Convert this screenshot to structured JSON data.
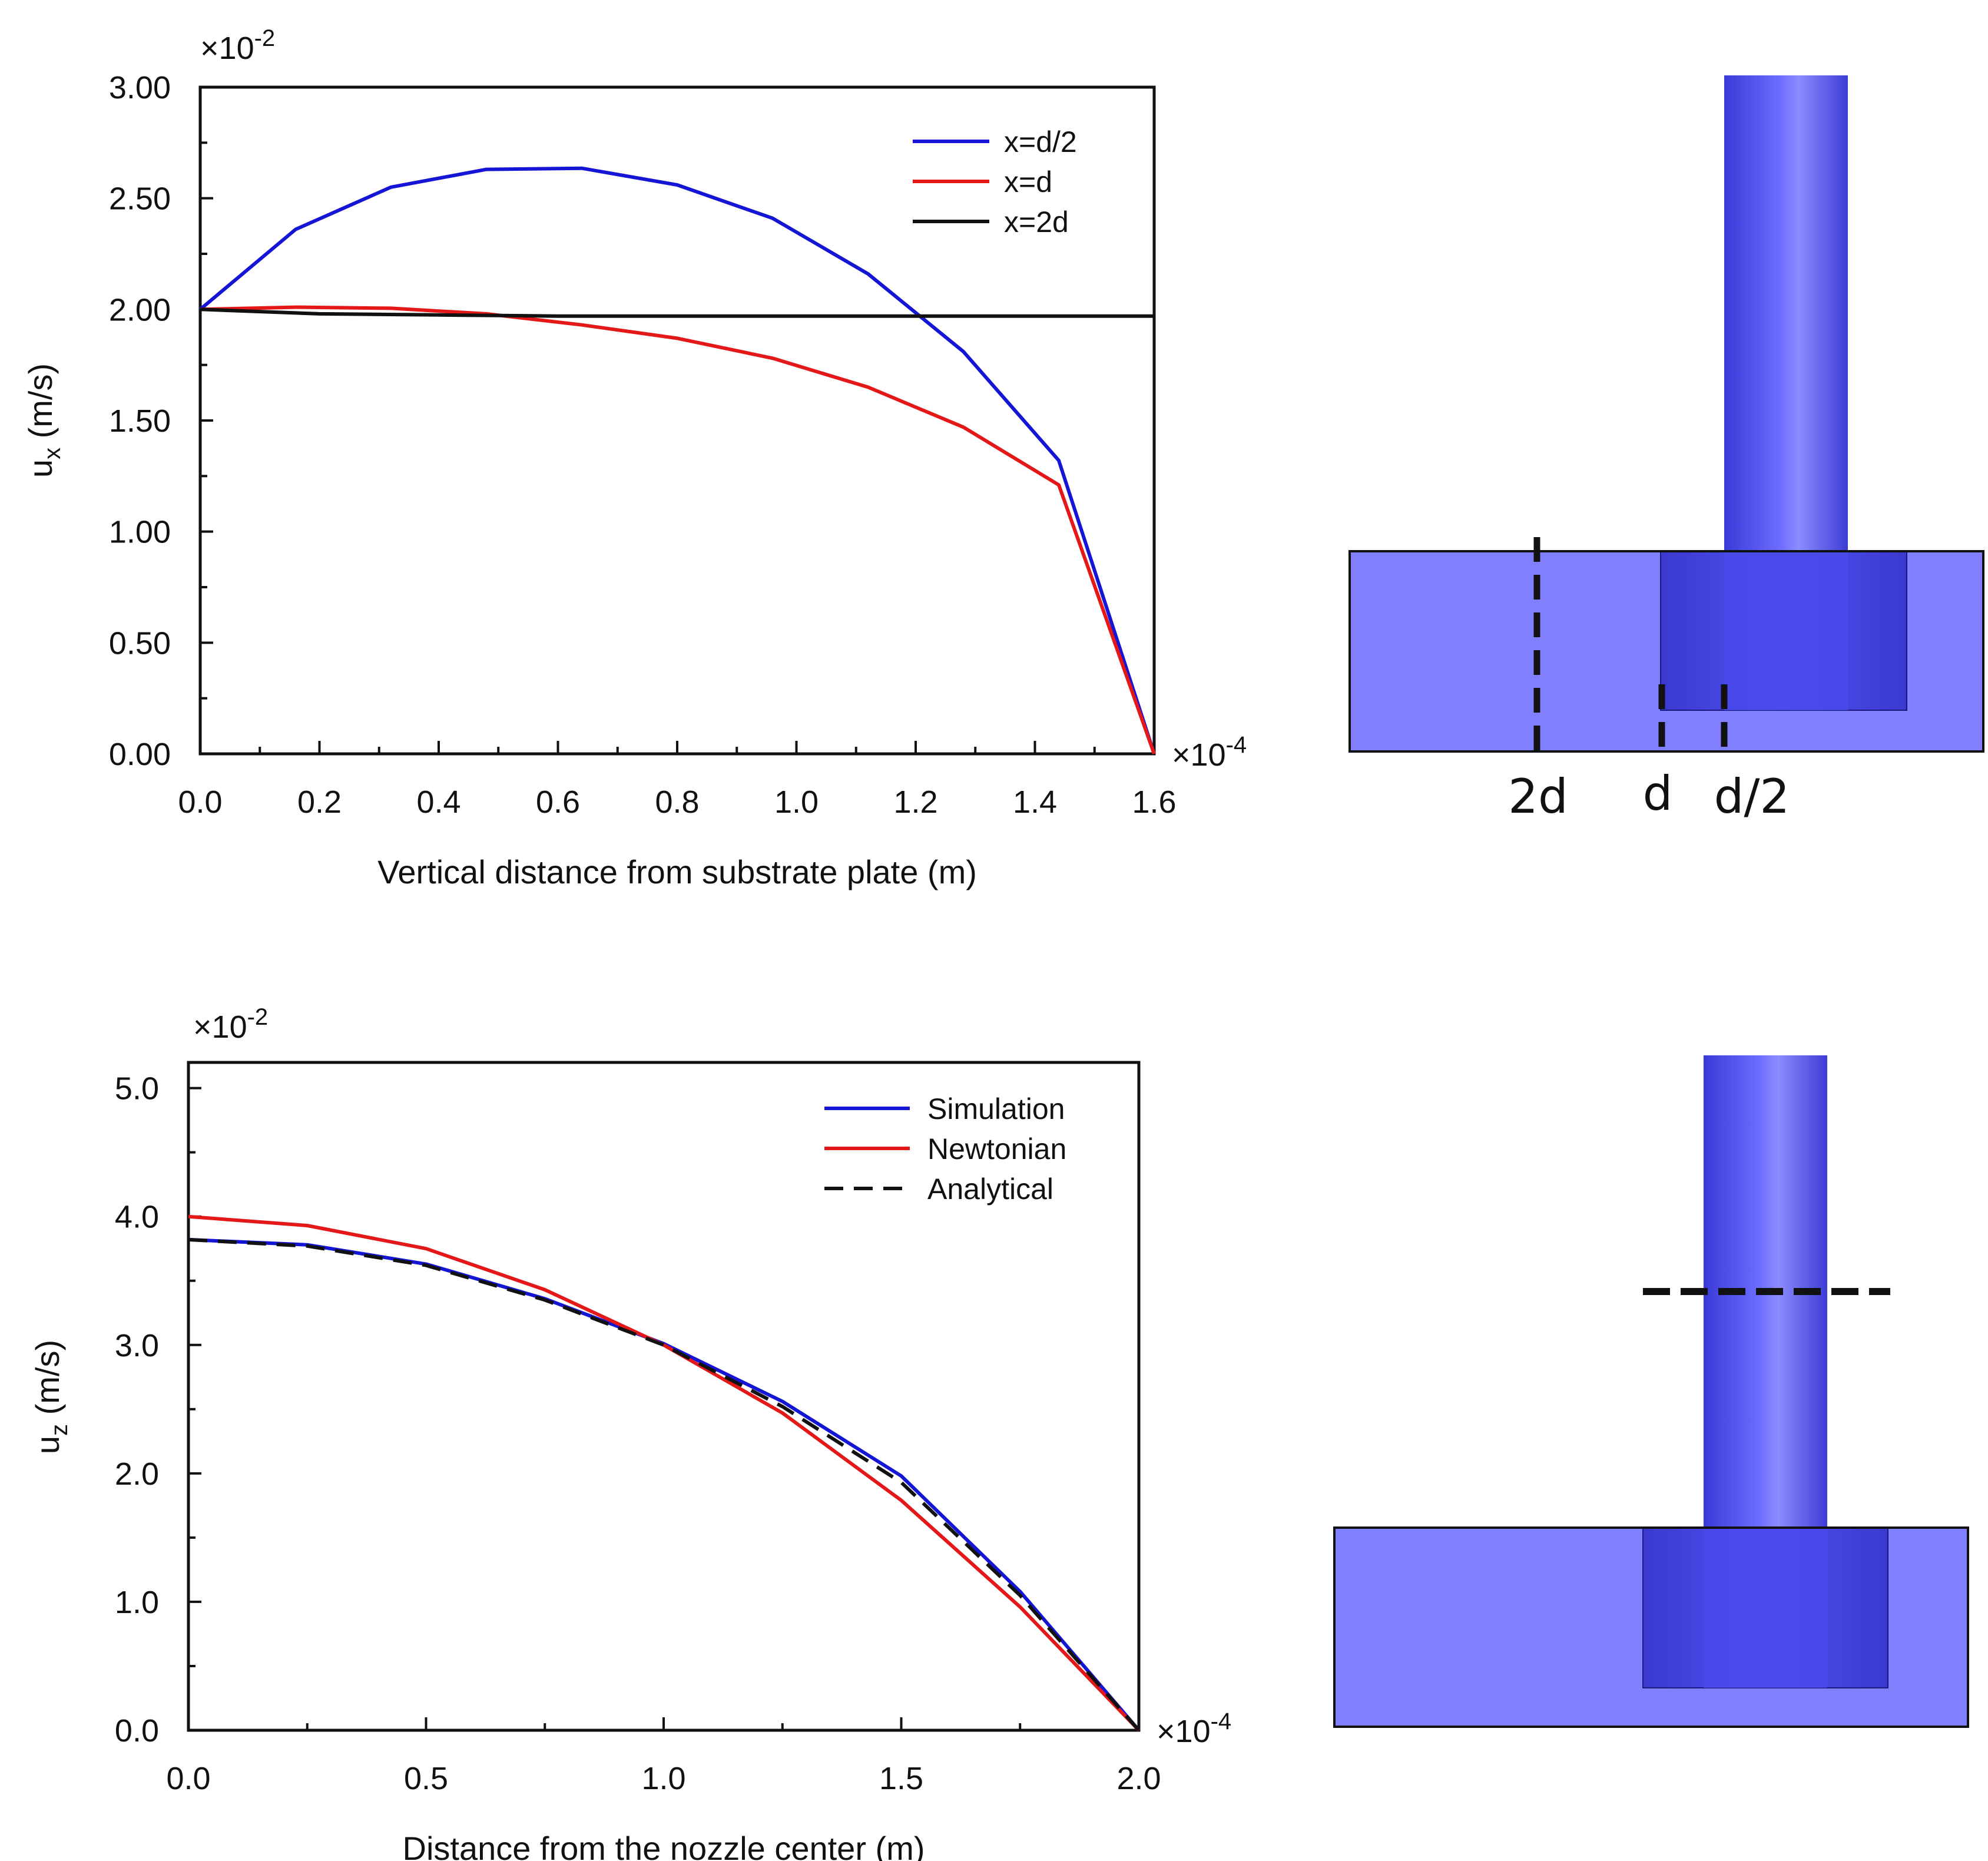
{
  "chart_data": [
    {
      "type": "line",
      "xlabel": "Vertical distance from substrate plate (m)",
      "ylabel_main": "u",
      "ylabel_sub": "x",
      "ylabel_unit": " (m/s)",
      "y_multiplier": "×10",
      "y_multiplier_exp": "-2",
      "x_multiplier": "×10",
      "x_multiplier_exp": "-4",
      "xlim": [
        0,
        1.6
      ],
      "ylim": [
        0,
        3.0
      ],
      "x_ticks": [
        "0.0",
        "0.2",
        "0.4",
        "0.6",
        "0.8",
        "1.0",
        "1.2",
        "1.4",
        "1.6"
      ],
      "y_ticks": [
        "0.00",
        "0.50",
        "1.00",
        "1.50",
        "2.00",
        "2.50",
        "3.00"
      ],
      "legend_position": "top-right",
      "series": [
        {
          "name": "x=d/2",
          "color": "#1515d6",
          "dash": "",
          "x": [
            0,
            0.16,
            0.32,
            0.48,
            0.64,
            0.8,
            0.96,
            1.12,
            1.28,
            1.44,
            1.6
          ],
          "y": [
            2.0,
            2.36,
            2.55,
            2.63,
            2.635,
            2.56,
            2.41,
            2.16,
            1.81,
            1.32,
            0.0
          ]
        },
        {
          "name": "x=d",
          "color": "#e41818",
          "dash": "",
          "x": [
            0,
            0.16,
            0.32,
            0.48,
            0.64,
            0.8,
            0.96,
            1.12,
            1.28,
            1.44,
            1.6
          ],
          "y": [
            2.0,
            2.01,
            2.005,
            1.98,
            1.93,
            1.87,
            1.78,
            1.65,
            1.47,
            1.21,
            0.0
          ]
        },
        {
          "name": "x=2d",
          "color": "#111111",
          "dash": "",
          "x": [
            0,
            0.2,
            0.4,
            0.6,
            0.8,
            1.0,
            1.2,
            1.4,
            1.6
          ],
          "y": [
            2.0,
            1.98,
            1.975,
            1.97,
            1.97,
            1.97,
            1.97,
            1.97,
            1.97
          ]
        }
      ]
    },
    {
      "type": "line",
      "xlabel": "Distance from the nozzle center (m)",
      "ylabel_main": "u",
      "ylabel_sub": "z",
      "ylabel_unit": " (m/s)",
      "y_multiplier": "×10",
      "y_multiplier_exp": "-2",
      "x_multiplier": "×10",
      "x_multiplier_exp": "-4",
      "xlim": [
        0,
        2.0
      ],
      "ylim": [
        0,
        5.2
      ],
      "x_ticks": [
        "0.0",
        "0.5",
        "1.0",
        "1.5",
        "2.0"
      ],
      "y_ticks": [
        "0.0",
        "1.0",
        "2.0",
        "3.0",
        "4.0",
        "5.0"
      ],
      "legend_position": "top-right",
      "series": [
        {
          "name": "Simulation",
          "color": "#1515d6",
          "dash": "",
          "x": [
            0,
            0.25,
            0.5,
            0.75,
            1.0,
            1.25,
            1.5,
            1.75,
            2.0
          ],
          "y": [
            3.82,
            3.78,
            3.63,
            3.36,
            3.01,
            2.56,
            1.98,
            1.08,
            0.0
          ]
        },
        {
          "name": "Newtonian",
          "color": "#e41818",
          "dash": "",
          "x": [
            0,
            0.25,
            0.5,
            0.75,
            1.0,
            1.25,
            1.5,
            1.75,
            2.0
          ],
          "y": [
            4.0,
            3.93,
            3.75,
            3.43,
            3.0,
            2.47,
            1.79,
            0.96,
            0.0
          ]
        },
        {
          "name": "Analytical",
          "color": "#111111",
          "dash": "32,18",
          "x": [
            0,
            0.25,
            0.5,
            0.75,
            1.0,
            1.25,
            1.5,
            1.75,
            2.0
          ],
          "y": [
            3.82,
            3.77,
            3.62,
            3.35,
            3.0,
            2.52,
            1.93,
            1.05,
            0.0
          ]
        }
      ]
    }
  ],
  "diagram": {
    "labels": [
      "2d",
      "d",
      "d/2"
    ],
    "colors": {
      "substrate": "#8080ff",
      "nozzle_core": "#4b4be6",
      "nozzle_highlight": "#8a8aff",
      "overlap": "#4444dd",
      "outline": "#111111"
    }
  }
}
